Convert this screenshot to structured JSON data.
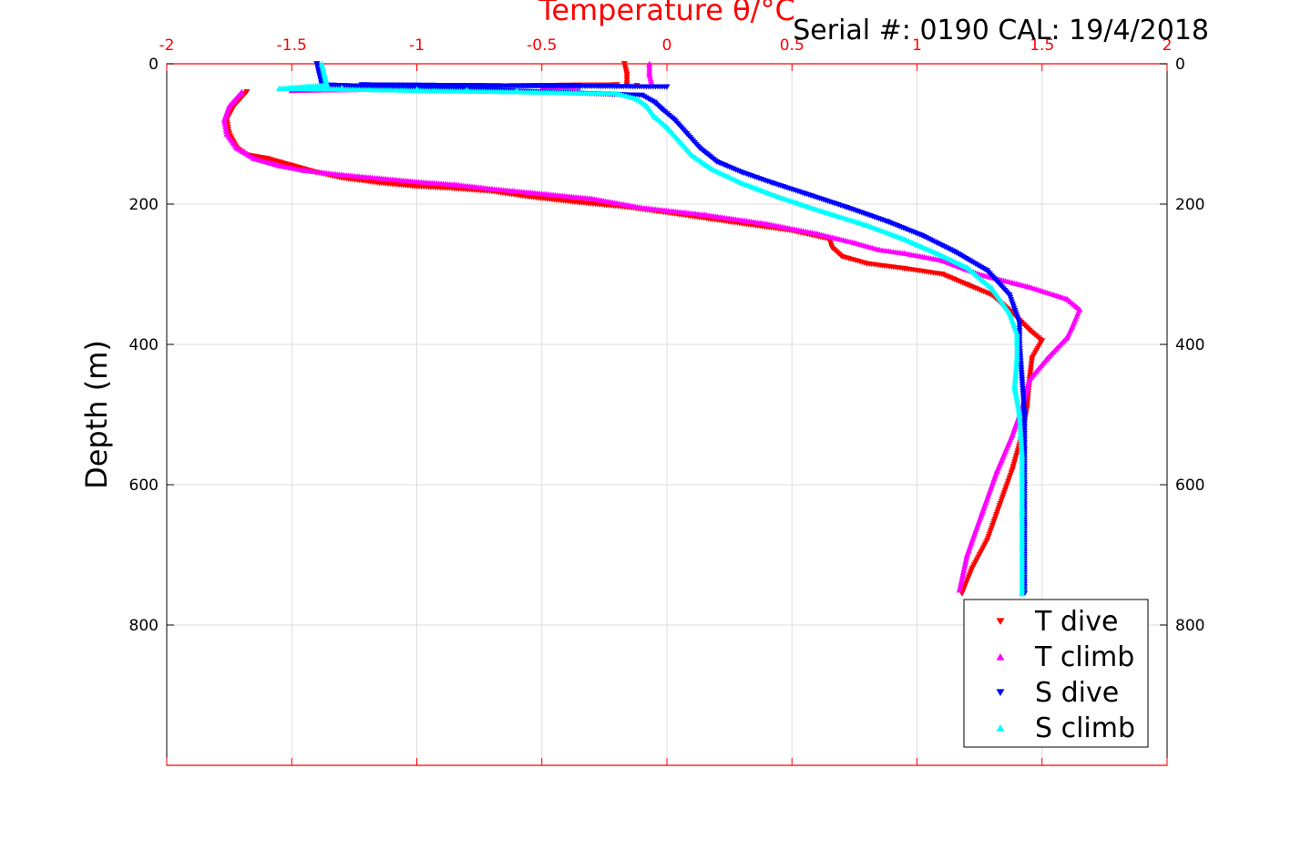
{
  "header": {
    "serial_text": "Serial #: 0190  CAL: 19/4/2018"
  },
  "chart_data": {
    "type": "scatter",
    "title": "",
    "xlabel": "Temperature θ/°C",
    "ylabel": "Depth (m)",
    "xlim": [
      -2,
      2
    ],
    "ylim": [
      0,
      1000
    ],
    "y_reversed": true,
    "x_axis_position": "top",
    "y_axis_mirrored_right": true,
    "grid": true,
    "x_ticks": [
      -2,
      -1.5,
      -1,
      -0.5,
      0,
      0.5,
      1,
      1.5,
      2
    ],
    "x_tick_labels": [
      "-2",
      "-1.5",
      "-1",
      "-0.5",
      "0",
      "0.5",
      "1",
      "1.5",
      "2"
    ],
    "y_ticks": [
      0,
      200,
      400,
      600,
      800
    ],
    "y_tick_labels": [
      "0",
      "200",
      "400",
      "600",
      "800"
    ],
    "colors": {
      "x_axis": "#ff0000",
      "y_axis": "#000000",
      "grid": "#dddddd"
    },
    "legend_position": "bottom-right",
    "series": [
      {
        "name": "T dive",
        "marker": "triangle-down",
        "color": "#ff0000",
        "x": [
          -0.17,
          -0.16,
          -0.16,
          -1.68,
          -1.73,
          -1.76,
          -1.75,
          -1.72,
          -1.68,
          -1.6,
          -1.5,
          -1.4,
          -1.3,
          -1.15,
          -1.0,
          -0.85,
          -0.7,
          -0.55,
          -0.35,
          -0.15,
          0.05,
          0.3,
          0.5,
          0.65,
          0.66,
          0.7,
          0.8,
          0.95,
          1.1,
          1.2,
          1.3,
          1.38,
          1.45,
          1.5,
          1.46,
          1.45,
          1.44,
          1.42,
          1.38,
          1.33,
          1.28,
          1.22,
          1.18,
          -0.68,
          -0.2,
          -1.15,
          -0.12
        ],
        "y": [
          0,
          15,
          30,
          40,
          60,
          80,
          100,
          120,
          130,
          135,
          145,
          155,
          163,
          170,
          175,
          178,
          182,
          190,
          198,
          205,
          215,
          228,
          238,
          250,
          262,
          275,
          285,
          292,
          300,
          315,
          330,
          355,
          380,
          395,
          420,
          450,
          490,
          530,
          580,
          630,
          680,
          720,
          755,
          33,
          30,
          33,
          31
        ]
      },
      {
        "name": "T climb",
        "marker": "triangle-up",
        "color": "#ff00ff",
        "x": [
          -0.07,
          -0.07,
          -0.06,
          -1.7,
          -1.75,
          -1.77,
          -1.76,
          -1.72,
          -1.65,
          -1.55,
          -1.45,
          -1.3,
          -1.15,
          -1.0,
          -0.85,
          -0.7,
          -0.5,
          -0.3,
          -0.1,
          0.15,
          0.4,
          0.6,
          0.75,
          0.85,
          0.95,
          1.1,
          1.25,
          1.45,
          1.6,
          1.65,
          1.62,
          1.6,
          1.52,
          1.45,
          1.42,
          1.38,
          1.32,
          1.26,
          1.2,
          1.17,
          -0.5,
          -0.35,
          -1.0,
          -0.85,
          -1.5
        ],
        "y": [
          0,
          15,
          30,
          40,
          60,
          80,
          100,
          120,
          135,
          145,
          152,
          158,
          163,
          168,
          172,
          178,
          185,
          192,
          205,
          215,
          228,
          242,
          255,
          265,
          270,
          280,
          300,
          318,
          335,
          350,
          375,
          390,
          420,
          450,
          490,
          530,
          580,
          640,
          700,
          750,
          36,
          38,
          36,
          35,
          38
        ]
      },
      {
        "name": "S dive",
        "marker": "triangle-down",
        "color": "#0000ff",
        "x": [
          -1.4,
          -1.39,
          -1.38,
          -0.1,
          -0.05,
          -0.02,
          0.03,
          0.08,
          0.13,
          0.2,
          0.3,
          0.42,
          0.55,
          0.72,
          0.88,
          1.02,
          1.15,
          1.28,
          1.37,
          1.41,
          1.41,
          1.42,
          1.43,
          1.43,
          1.43,
          1.43,
          1.43,
          -0.35,
          -0.85,
          -1.22,
          0.0
        ],
        "y": [
          0,
          15,
          30,
          45,
          55,
          65,
          80,
          100,
          120,
          140,
          155,
          170,
          185,
          205,
          225,
          245,
          268,
          295,
          330,
          370,
          400,
          450,
          500,
          550,
          600,
          660,
          755,
          31,
          32,
          30,
          33
        ]
      },
      {
        "name": "S climb",
        "marker": "triangle-up",
        "color": "#00ffff",
        "x": [
          -1.38,
          -1.37,
          -1.36,
          -1.55,
          -0.2,
          -0.12,
          -0.08,
          -0.05,
          0.0,
          0.05,
          0.1,
          0.18,
          0.3,
          0.45,
          0.62,
          0.8,
          0.95,
          1.08,
          1.2,
          1.3,
          1.37,
          1.4,
          1.4,
          1.39,
          1.41,
          1.42,
          1.42,
          1.42,
          -0.6,
          -0.8,
          -1.0,
          -1.3
        ],
        "y": [
          0,
          15,
          30,
          35,
          42,
          50,
          60,
          75,
          90,
          110,
          130,
          150,
          170,
          190,
          210,
          230,
          250,
          270,
          290,
          320,
          355,
          385,
          420,
          460,
          500,
          560,
          640,
          755,
          38,
          37,
          36,
          34
        ]
      }
    ]
  }
}
